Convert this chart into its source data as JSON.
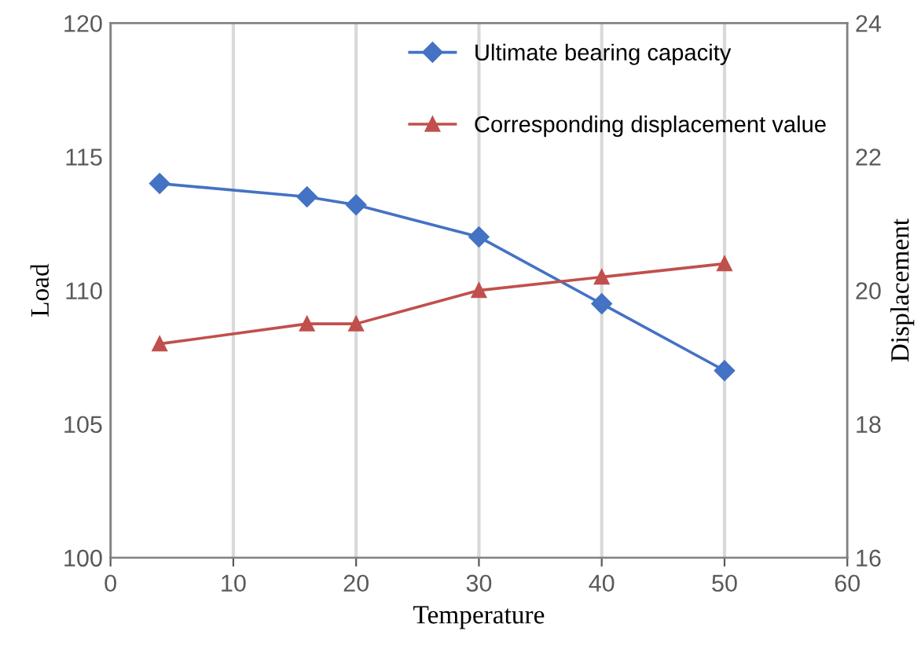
{
  "chart_data": {
    "type": "line",
    "xlabel": "Temperature",
    "ylabel": "Load",
    "y2label": "Displacement",
    "x": [
      4,
      16,
      20,
      30,
      40,
      50
    ],
    "series": [
      {
        "name": "Ultimate bearing capacity",
        "color": "#4472c4",
        "marker": "diamond",
        "values": [
          114.0,
          113.5,
          113.2,
          112.0,
          109.5,
          107.0
        ]
      },
      {
        "name": "Corresponding displacement value",
        "color": "#c0504d",
        "marker": "triangle",
        "axis": "y2",
        "values": [
          19.2,
          19.5,
          19.5,
          20.0,
          20.2,
          20.4
        ]
      }
    ],
    "xlim": [
      0,
      60
    ],
    "xticks": [
      0,
      10,
      20,
      30,
      40,
      50,
      60
    ],
    "ylim": [
      100,
      120
    ],
    "yticks": [
      100,
      105,
      110,
      115,
      120
    ],
    "y2lim": [
      16,
      24
    ],
    "y2ticks": [
      16,
      18,
      20,
      22,
      24
    ],
    "grid": "x",
    "legend": "top right",
    "line_style": "solid"
  }
}
